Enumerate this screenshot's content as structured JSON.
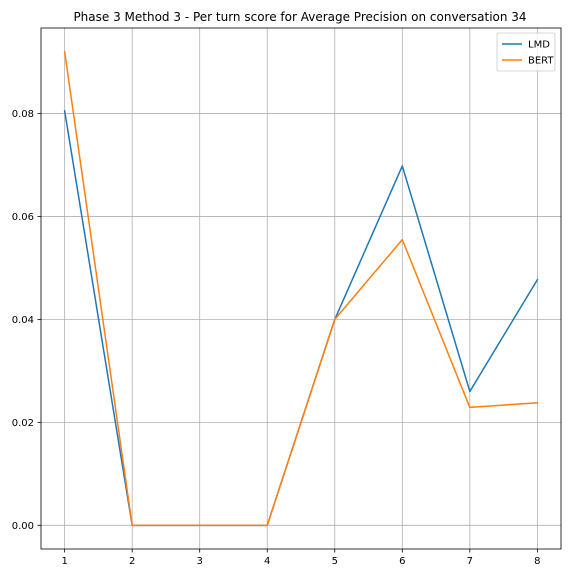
{
  "chart_data": {
    "type": "line",
    "title": "Phase 3 Method 3 - Per turn score for Average Precision on conversation 34",
    "xlabel": "",
    "ylabel": "",
    "x": [
      1,
      2,
      3,
      4,
      5,
      6,
      7,
      8
    ],
    "xticks": [
      "1",
      "2",
      "3",
      "4",
      "5",
      "6",
      "7",
      "8"
    ],
    "yticks": [
      0.0,
      0.02,
      0.04,
      0.06,
      0.08
    ],
    "ytick_labels": [
      "0.00",
      "0.02",
      "0.04",
      "0.06",
      "0.08"
    ],
    "xlim": [
      0.65,
      8.35
    ],
    "ylim": [
      -0.0046,
      0.0966
    ],
    "grid": true,
    "legend_position": "upper right",
    "series": [
      {
        "name": "LMD",
        "color": "#1f77b4",
        "values": [
          0.0805,
          0.0,
          0.0,
          0.0,
          0.04,
          0.0698,
          0.026,
          0.0477
        ]
      },
      {
        "name": "BERT",
        "color": "#ff7f0e",
        "values": [
          0.092,
          0.0,
          0.0,
          0.0,
          0.04,
          0.0555,
          0.0229,
          0.0238
        ]
      }
    ]
  }
}
